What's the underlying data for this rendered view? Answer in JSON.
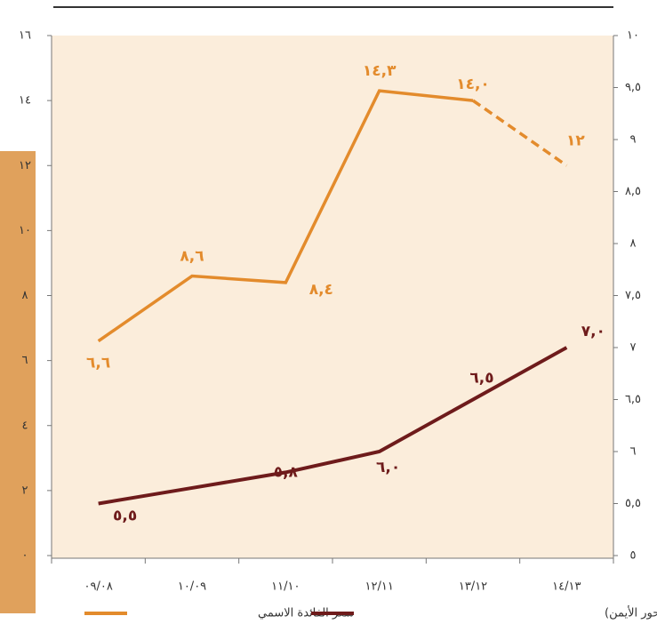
{
  "chart_data": {
    "type": "line",
    "categories": [
      "٠٩/٠٨",
      "١٠/٠٩",
      "١١/١٠",
      "١٢/١١",
      "١٣/١٢",
      "١٤/١٣"
    ],
    "series": [
      {
        "name": "سعر الفائدة الاسمي",
        "color": "#e38b2c",
        "last_segment_dashed": true,
        "values": [
          6.6,
          8.6,
          8.4,
          14.3,
          14.0,
          12
        ],
        "value_labels": [
          "٦,٦",
          "٨,٦",
          "٨,٤",
          "١٤,٣",
          "١٤,٠",
          "١٢"
        ]
      },
      {
        "name": "متوسط سعر الصرف (المحور الأيمن)",
        "color": "#6e1b1b",
        "axis": "y2",
        "values": [
          5.5,
          5.65,
          5.8,
          6.0,
          6.5,
          7.0
        ],
        "value_labels": [
          "٥,٥",
          null,
          "٥,٨",
          "٦,٠",
          "٦,٥",
          "٧,٠"
        ]
      }
    ],
    "ylim": [
      0,
      16
    ],
    "yticks": [
      {
        "value": 0,
        "label": "٠"
      },
      {
        "value": 2,
        "label": "٢"
      },
      {
        "value": 4,
        "label": "٤"
      },
      {
        "value": 6,
        "label": "٦"
      },
      {
        "value": 8,
        "label": "٨"
      },
      {
        "value": 10,
        "label": "١٠"
      },
      {
        "value": 12,
        "label": "١٢"
      },
      {
        "value": 14,
        "label": "١٤"
      },
      {
        "value": 16,
        "label": "١٦"
      }
    ],
    "y2lim": [
      5,
      10
    ],
    "y2ticks": [
      {
        "value": 5,
        "label": "٥"
      },
      {
        "value": 5.5,
        "label": "٥,٥"
      },
      {
        "value": 6,
        "label": "٦"
      },
      {
        "value": 6.5,
        "label": "٦,٥"
      },
      {
        "value": 7,
        "label": "٧"
      },
      {
        "value": 7.5,
        "label": "٧,٥"
      },
      {
        "value": 8,
        "label": "٨"
      },
      {
        "value": 8.5,
        "label": "٨,٥"
      },
      {
        "value": 9,
        "label": "٩"
      },
      {
        "value": 9.5,
        "label": "٩,٥"
      },
      {
        "value": 10,
        "label": "١٠"
      }
    ],
    "legend": "bottom"
  }
}
